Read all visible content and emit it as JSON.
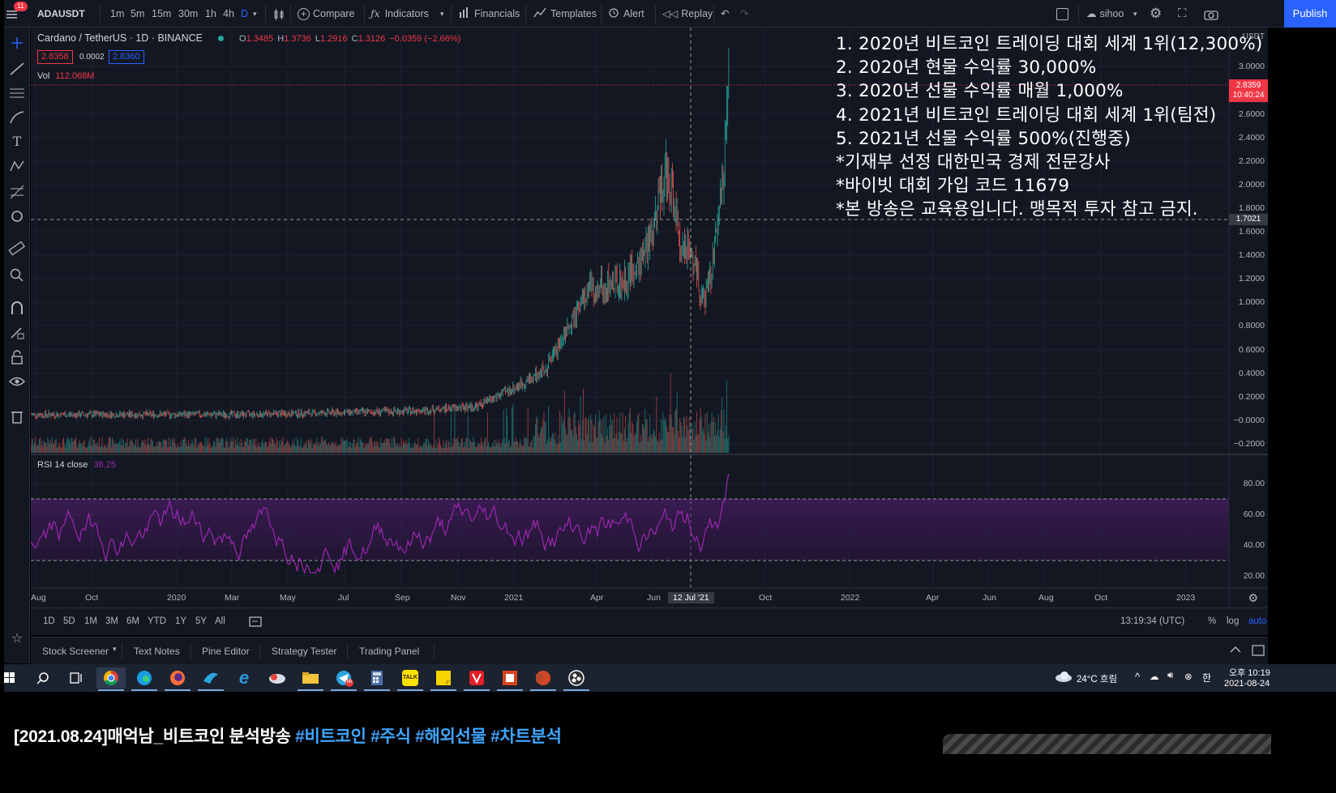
{
  "toolbar": {
    "symbol": "ADAUSDT",
    "intervals": [
      "1m",
      "5m",
      "15m",
      "30m",
      "1h",
      "4h",
      "D"
    ],
    "active_interval": "D",
    "compare": "Compare",
    "indicators": "Indicators",
    "financials": "Financials",
    "templates": "Templates",
    "alert": "Alert",
    "replay": "Replay",
    "layout_name": "sihoo",
    "publish": "Publish",
    "notifications": "11"
  },
  "legend": {
    "title": "Cardano / TetherUS · 1D · BINANCE",
    "ohlc": [
      {
        "k": "O",
        "v": "1.3485"
      },
      {
        "k": "H",
        "v": "1.3736"
      },
      {
        "k": "L",
        "v": "1.2916"
      },
      {
        "k": "C",
        "v": "1.3126"
      },
      {
        "k": "",
        "v": "−0.0359 (−2.66%)"
      }
    ],
    "sell_price": "2.8358",
    "spread": "0.0002",
    "buy_price": "2.8360",
    "vol_label": "Vol",
    "vol_value": "112.068M",
    "rsi_label": "RSI 14 close",
    "rsi_value": "38.25"
  },
  "overlay_lines": [
    "1. 2020년 비트코인 트레이딩 대회 세계 1위(12,300%)",
    "2. 2020년 현물 수익률 30,000%",
    "3. 2020년 선물 수익률 매월 1,000%",
    "4. 2021년 비트코인 트레이딩 대회 세계 1위(팀전)",
    "5. 2021년 선물 수익률 500%(진행중)",
    "*기재부 선정 대한민국 경제 전문강사",
    "*바이빗 대회 가입 코드 11679",
    "*본 방송은 교육용입니다. 맹목적 투자 참고 금지."
  ],
  "price_axis": {
    "currency": "USDT",
    "labels": [
      "3.0000",
      "2.6000",
      "2.4000",
      "2.2000",
      "2.0000",
      "1.8000",
      "1.6000",
      "1.4000",
      "1.2000",
      "1.0000",
      "0.8000",
      "0.6000",
      "0.4000",
      "0.2000",
      "−0.0000",
      "−0.2000"
    ],
    "last_price": "2.8359",
    "countdown": "10:40:24",
    "crosshair_price": "1.7021"
  },
  "rsi_axis": {
    "labels": [
      "80.00",
      "60.00",
      "40.00",
      "20.00"
    ],
    "upper": 70,
    "lower": 30
  },
  "time_axis": {
    "labels": [
      "Aug",
      "Oct",
      "2020",
      "Mar",
      "May",
      "Jul",
      "Sep",
      "Nov",
      "2021",
      "Apr",
      "Jun",
      "Oct",
      "2022",
      "Apr",
      "Jun",
      "Aug",
      "Oct",
      "2023"
    ],
    "crosshair_date": "12 Jul '21"
  },
  "range_bar": {
    "ranges": [
      "1D",
      "5D",
      "1M",
      "3M",
      "6M",
      "YTD",
      "1Y",
      "5Y",
      "All"
    ],
    "clock": "13:19:34 (UTC)",
    "percent": "%",
    "log": "log",
    "auto": "auto"
  },
  "bottom_tabs": [
    "Stock Screener",
    "Text Notes",
    "Pine Editor",
    "Strategy Tester",
    "Trading Panel"
  ],
  "taskbar": {
    "weather": "24°C  흐림",
    "time": "오후 10:19",
    "date": "2021-08-24",
    "telegram_badge": "86",
    "kakao_label": "TALK",
    "apps": [
      "windows",
      "search",
      "task-view",
      "chrome",
      "edge",
      "firefox",
      "bird-app",
      "ie",
      "cloud-app",
      "file-explorer",
      "telegram",
      "calculator",
      "kakaotalk",
      "sticky-notes",
      "v-app",
      "office",
      "powerpoint",
      "obs"
    ]
  },
  "caption": {
    "text": "[2021.08.24]매억남_비트코인 분석방송 ",
    "tags": [
      "#비트코인",
      "#주식",
      "#해외선물",
      "#차트분석"
    ]
  },
  "colors": {
    "bg": "#131722",
    "up": "#26a69a",
    "down": "#ef5350",
    "rsi": "#9c27b0",
    "accent": "#2962ff"
  }
}
